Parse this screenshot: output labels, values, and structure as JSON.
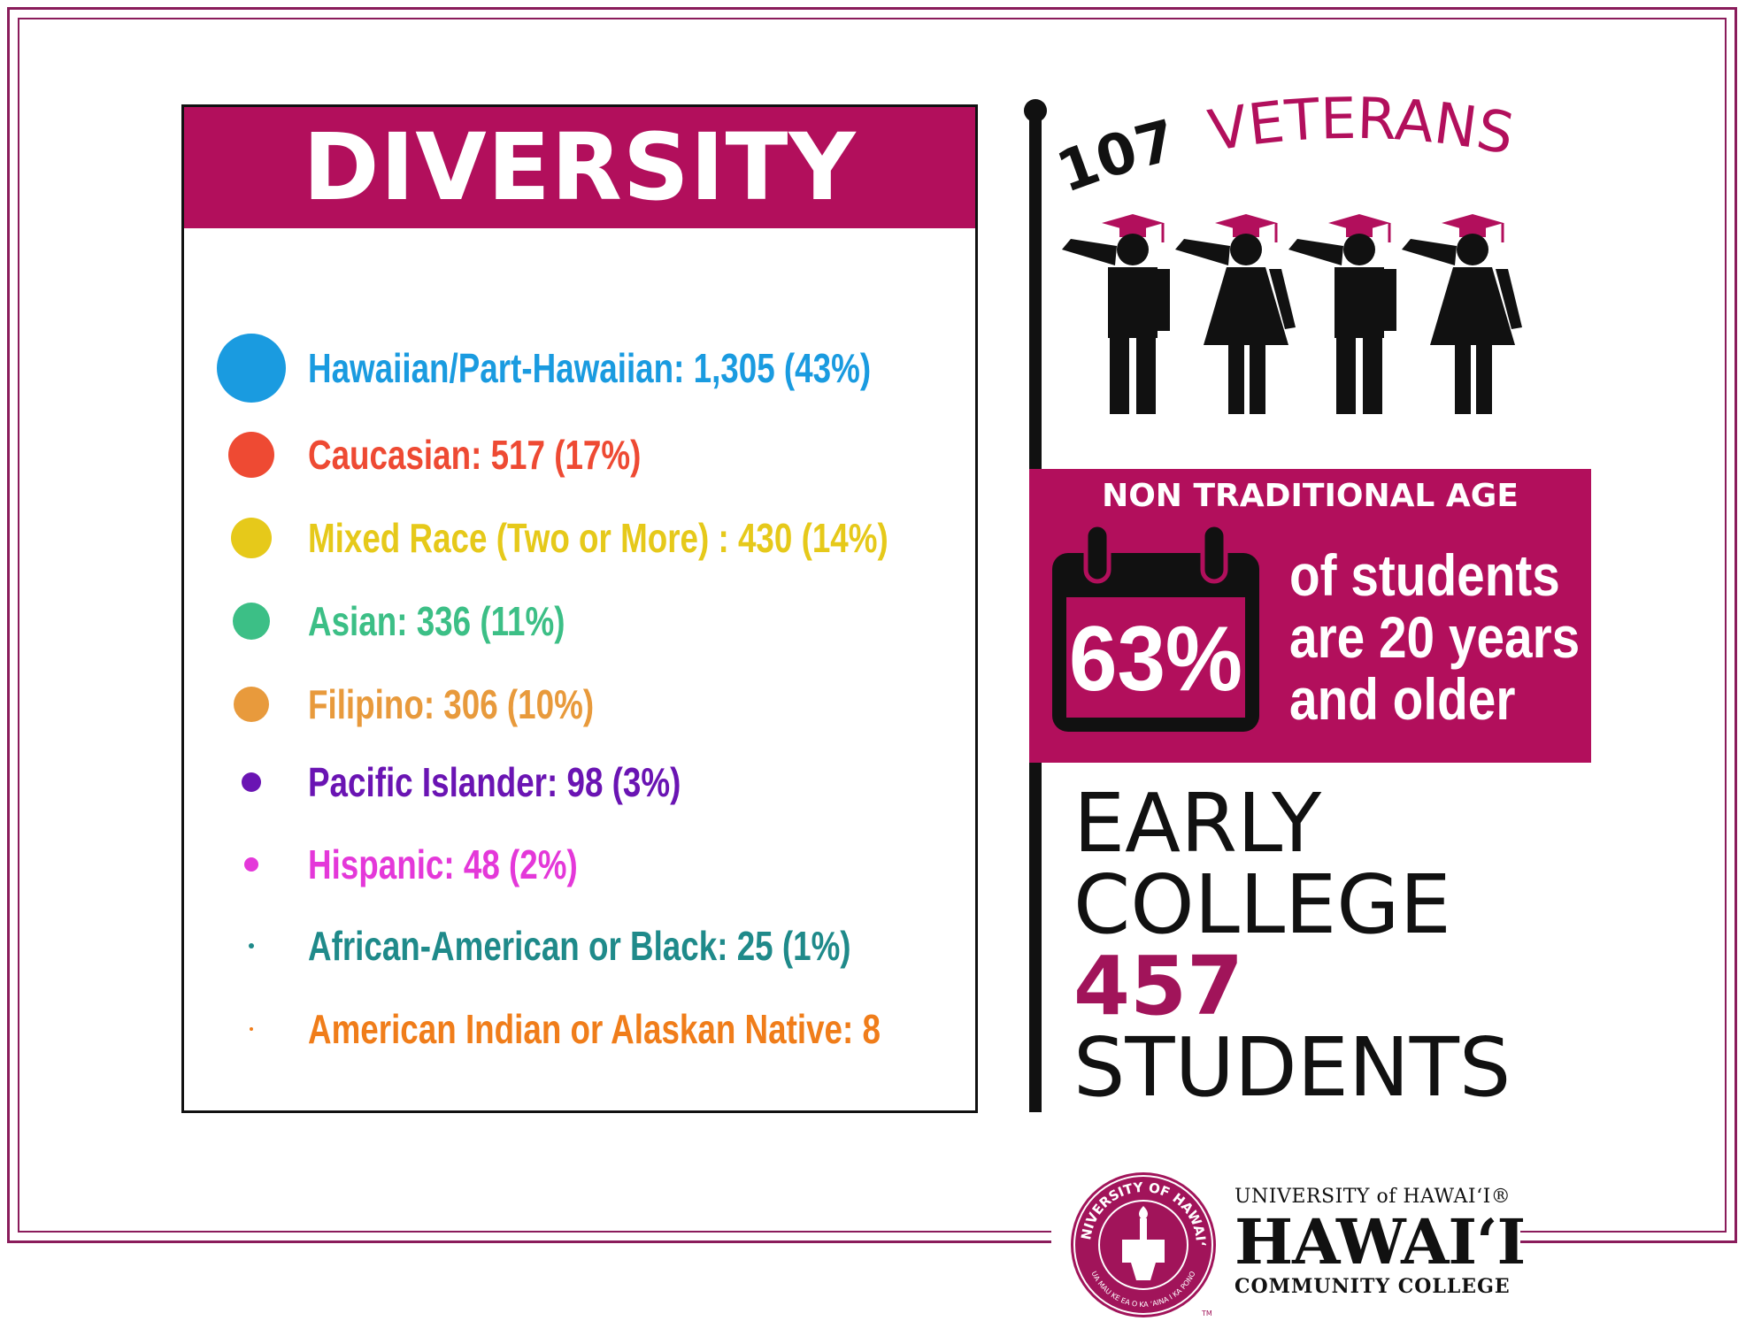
{
  "diversity": {
    "title": "DIVERSITY",
    "items": [
      {
        "label": "Hawaiian/Part-Hawaiian: 1,305 (43%)",
        "color": "#1a9be0",
        "dot": 78
      },
      {
        "label": "Caucasian: 517 (17%)",
        "color": "#ee4a33",
        "dot": 52
      },
      {
        "label": "Mixed Race (Two or More) : 430 (14%)",
        "color": "#e6c91a",
        "dot": 46
      },
      {
        "label": "Asian: 336 (11%)",
        "color": "#3cbf86",
        "dot": 42
      },
      {
        "label": "Filipino: 306 (10%)",
        "color": "#e89a3c",
        "dot": 40
      },
      {
        "label": "Pacific Islander: 98 (3%)",
        "color": "#6a14b3",
        "dot": 22
      },
      {
        "label": "Hispanic: 48 (2%)",
        "color": "#e438d9",
        "dot": 16
      },
      {
        "label": "African-American or Black: 25 (1%)",
        "color": "#1f8a8a",
        "dot": 6
      },
      {
        "label": "American Indian or Alaskan Native: 8",
        "color": "#f07d1a",
        "dot": 4
      }
    ]
  },
  "veterans": {
    "count": "107",
    "label": "VETERANS"
  },
  "non_traditional": {
    "title": "NON TRADITIONAL AGE",
    "percent": "63%",
    "line1": "of students",
    "line2": "are 20 years",
    "line3": "and older"
  },
  "early_college": {
    "line1": "EARLY",
    "line2": "COLLEGE",
    "count": "457",
    "line4": "STUDENTS"
  },
  "logo": {
    "top": "UNIVERSITY of HAWAIʻI®",
    "main": "HAWAIʻI",
    "bottom": "COMMUNITY COLLEGE",
    "seal_top": "UNIVERSITY OF HAWAIʻI",
    "seal_bottom": "UA MAU KE EA O KA ʻAINA I KA PONO",
    "seal_mark": "TM"
  },
  "colors": {
    "brand": "#b20f5c",
    "frame": "#8a1c5b"
  }
}
